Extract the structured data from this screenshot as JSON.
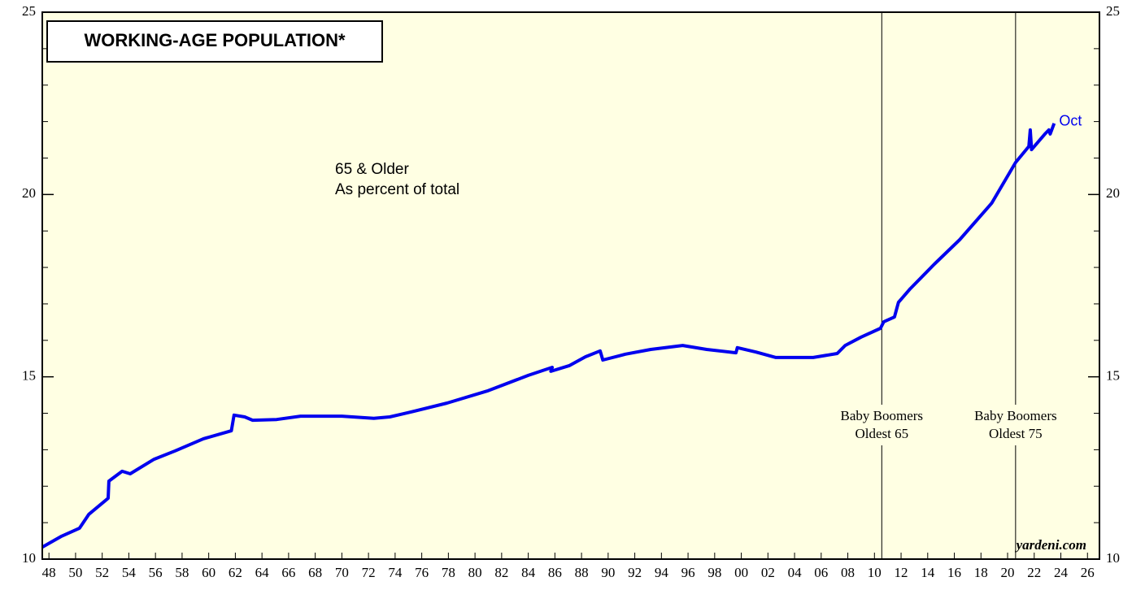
{
  "chart_data": {
    "type": "line",
    "title": "WORKING-AGE POPULATION*",
    "label_lines": [
      "65 & Older",
      "As percent of total"
    ],
    "end_label": "Oct",
    "source": "yardeni.com",
    "xlim": [
      1947.5,
      2026.9
    ],
    "xticks": [
      {
        "value": 1948,
        "label": "48"
      },
      {
        "value": 1950,
        "label": "50"
      },
      {
        "value": 1952,
        "label": "52"
      },
      {
        "value": 1954,
        "label": "54"
      },
      {
        "value": 1956,
        "label": "56"
      },
      {
        "value": 1958,
        "label": "58"
      },
      {
        "value": 1960,
        "label": "60"
      },
      {
        "value": 1962,
        "label": "62"
      },
      {
        "value": 1964,
        "label": "64"
      },
      {
        "value": 1966,
        "label": "66"
      },
      {
        "value": 1968,
        "label": "68"
      },
      {
        "value": 1970,
        "label": "70"
      },
      {
        "value": 1972,
        "label": "72"
      },
      {
        "value": 1974,
        "label": "74"
      },
      {
        "value": 1976,
        "label": "76"
      },
      {
        "value": 1978,
        "label": "78"
      },
      {
        "value": 1980,
        "label": "80"
      },
      {
        "value": 1982,
        "label": "82"
      },
      {
        "value": 1984,
        "label": "84"
      },
      {
        "value": 1986,
        "label": "86"
      },
      {
        "value": 1988,
        "label": "88"
      },
      {
        "value": 1990,
        "label": "90"
      },
      {
        "value": 1992,
        "label": "92"
      },
      {
        "value": 1994,
        "label": "94"
      },
      {
        "value": 1996,
        "label": "96"
      },
      {
        "value": 1998,
        "label": "98"
      },
      {
        "value": 2000,
        "label": "00"
      },
      {
        "value": 2002,
        "label": "02"
      },
      {
        "value": 2004,
        "label": "04"
      },
      {
        "value": 2006,
        "label": "06"
      },
      {
        "value": 2008,
        "label": "08"
      },
      {
        "value": 2010,
        "label": "10"
      },
      {
        "value": 2012,
        "label": "12"
      },
      {
        "value": 2014,
        "label": "14"
      },
      {
        "value": 2016,
        "label": "16"
      },
      {
        "value": 2018,
        "label": "18"
      },
      {
        "value": 2020,
        "label": "20"
      },
      {
        "value": 2022,
        "label": "22"
      },
      {
        "value": 2024,
        "label": "24"
      },
      {
        "value": 2026,
        "label": "26"
      }
    ],
    "ylim": [
      10,
      25
    ],
    "yticks": [
      10,
      15,
      20,
      25
    ],
    "y2lim": [
      10,
      25
    ],
    "y2ticks": [
      10,
      15,
      20,
      25
    ],
    "y_minor_ticks": [
      11,
      12,
      13,
      14,
      16,
      17,
      18,
      19,
      21,
      22,
      23,
      24
    ],
    "events": [
      {
        "x": 2010.55,
        "label": [
          "Baby Boomers",
          "Oldest 65"
        ]
      },
      {
        "x": 2020.6,
        "label": [
          "Baby Boomers",
          "Oldest 75"
        ]
      }
    ],
    "series": [
      {
        "color": "#0000ee",
        "x": [
          1947.5,
          1948.9,
          1950.3,
          1951.0,
          1952.45,
          1952.5,
          1953.5,
          1954.1,
          1955.9,
          1957.5,
          1959.6,
          1961.7,
          1961.9,
          1962.7,
          1963.3,
          1965.1,
          1966.9,
          1970.0,
          1972.4,
          1973.6,
          1974.9,
          1977.9,
          1980.9,
          1984.0,
          1985.8,
          1985.7,
          1987.1,
          1988.3,
          1989.4,
          1989.6,
          1991.3,
          1993.2,
          1995.6,
          1997.4,
          1999.6,
          1999.7,
          2001.1,
          2002.6,
          2005.4,
          2007.2,
          2007.8,
          2009.0,
          2010.45,
          2010.7,
          2011.5,
          2011.8,
          2012.7,
          2014.5,
          2016.4,
          2018.8,
          2020.6,
          2021.6,
          2021.7,
          2021.8,
          2022.8,
          2023.1,
          2023.2,
          2023.5
        ],
        "values": [
          10.33,
          10.62,
          10.85,
          11.23,
          11.67,
          12.14,
          12.41,
          12.34,
          12.74,
          12.97,
          13.3,
          13.52,
          13.95,
          13.9,
          13.81,
          13.83,
          13.92,
          13.92,
          13.86,
          13.9,
          14.01,
          14.28,
          14.61,
          15.04,
          15.26,
          15.15,
          15.31,
          15.55,
          15.71,
          15.46,
          15.62,
          15.75,
          15.86,
          15.75,
          15.66,
          15.8,
          15.68,
          15.53,
          15.53,
          15.64,
          15.86,
          16.09,
          16.33,
          16.51,
          16.64,
          17.04,
          17.42,
          18.09,
          18.76,
          19.76,
          20.88,
          21.32,
          21.77,
          21.23,
          21.66,
          21.77,
          21.66,
          21.95
        ]
      }
    ]
  }
}
